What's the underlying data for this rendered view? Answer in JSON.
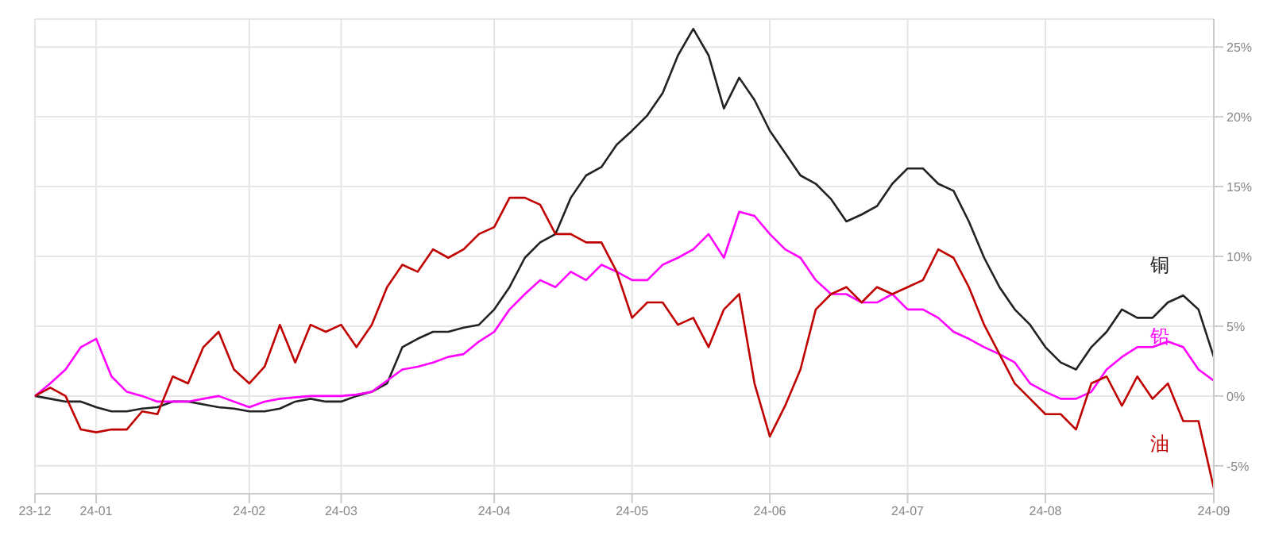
{
  "chart_data": {
    "type": "line",
    "categories": [
      "23-12",
      null,
      null,
      null,
      "24-01",
      null,
      null,
      null,
      null,
      null,
      null,
      null,
      null,
      null,
      "24-02",
      null,
      null,
      null,
      null,
      null,
      "24-03",
      null,
      null,
      null,
      null,
      null,
      null,
      null,
      null,
      null,
      "24-04",
      null,
      null,
      null,
      null,
      null,
      null,
      null,
      null,
      "24-05",
      null,
      null,
      null,
      null,
      null,
      null,
      null,
      null,
      "24-06",
      null,
      null,
      null,
      null,
      null,
      null,
      null,
      null,
      "24-07",
      null,
      null,
      null,
      null,
      null,
      null,
      null,
      null,
      "24-08",
      null,
      null,
      null,
      null,
      null,
      null,
      null,
      null,
      null,
      null,
      "24-09"
    ],
    "series": [
      {
        "name": "铜",
        "color": "#222222",
        "values": [
          0,
          -0.2,
          -0.4,
          -0.4,
          -0.8,
          -1.1,
          -1.1,
          -0.9,
          -0.8,
          -0.4,
          -0.4,
          -0.6,
          -0.8,
          -0.9,
          -1.1,
          -1.1,
          -0.9,
          -0.4,
          -0.2,
          -0.4,
          -0.4,
          0,
          0.3,
          0.9,
          3.5,
          4.1,
          4.6,
          4.6,
          4.9,
          5.1,
          6.2,
          7.8,
          9.9,
          11,
          11.6,
          14.2,
          15.8,
          16.4,
          18,
          19,
          20.1,
          21.7,
          24.4,
          26.3,
          24.4,
          20.6,
          22.8,
          21.2,
          19,
          17.4,
          15.8,
          15.2,
          14.1,
          12.5,
          13,
          13.6,
          15.2,
          16.3,
          16.3,
          15.2,
          14.7,
          12.5,
          9.9,
          7.8,
          6.2,
          5.1,
          3.5,
          2.4,
          1.9,
          3.5,
          4.6,
          6.2,
          5.6,
          5.6,
          6.7,
          7.2,
          6.2,
          2.8
        ]
      },
      {
        "name": "铅",
        "color": "#ff00ff",
        "values": [
          0,
          0.9,
          1.9,
          3.5,
          4.1,
          1.4,
          0.3,
          0,
          -0.4,
          -0.4,
          -0.4,
          -0.2,
          0,
          -0.4,
          -0.8,
          -0.4,
          -0.2,
          -0.1,
          0,
          0,
          0,
          0.1,
          0.3,
          1.1,
          1.9,
          2.1,
          2.4,
          2.8,
          3,
          3.9,
          4.6,
          6.2,
          7.3,
          8.3,
          7.8,
          8.9,
          8.3,
          9.4,
          8.9,
          8.3,
          8.3,
          9.4,
          9.9,
          10.5,
          11.6,
          9.9,
          13.2,
          12.9,
          11.6,
          10.5,
          9.9,
          8.3,
          7.3,
          7.3,
          6.7,
          6.7,
          7.3,
          6.2,
          6.2,
          5.6,
          4.6,
          4.1,
          3.5,
          3,
          2.4,
          0.9,
          0.3,
          -0.2,
          -0.2,
          0.3,
          1.9,
          2.8,
          3.5,
          3.5,
          3.9,
          3.5,
          1.9,
          1.1
        ]
      },
      {
        "name": "油",
        "color": "#c00000",
        "values": [
          0,
          0.6,
          0,
          -2.4,
          -2.6,
          -2.4,
          -2.4,
          -1.1,
          -1.3,
          1.4,
          0.9,
          3.5,
          4.6,
          1.9,
          0.9,
          2.1,
          5.1,
          2.4,
          5.1,
          4.6,
          5.1,
          3.5,
          5.1,
          7.8,
          9.4,
          8.9,
          10.5,
          9.9,
          10.5,
          11.6,
          12.1,
          14.2,
          14.2,
          13.7,
          11.6,
          11.6,
          11,
          11,
          8.9,
          5.6,
          6.7,
          6.7,
          5.1,
          5.6,
          3.5,
          6.2,
          7.3,
          0.9,
          -2.9,
          -0.7,
          1.9,
          6.2,
          7.3,
          7.8,
          6.7,
          7.8,
          7.3,
          7.8,
          8.3,
          10.5,
          9.9,
          7.8,
          5.1,
          3,
          0.9,
          -0.2,
          -1.3,
          -1.3,
          -2.4,
          0.9,
          1.4,
          -0.7,
          1.4,
          -0.2,
          0.9,
          -1.8,
          -1.8,
          -6.6
        ]
      }
    ],
    "ylim": [
      -7,
      27
    ],
    "yticks": [
      {
        "value": -5,
        "label": "-5%"
      },
      {
        "value": 0,
        "label": "0%"
      },
      {
        "value": 5,
        "label": "5%"
      },
      {
        "value": 10,
        "label": "10%"
      },
      {
        "value": 15,
        "label": "15%"
      },
      {
        "value": 20,
        "label": "20%"
      },
      {
        "value": 25,
        "label": "25%"
      }
    ],
    "grid": true,
    "marker": "none",
    "line_style": "solid",
    "legend": false
  }
}
